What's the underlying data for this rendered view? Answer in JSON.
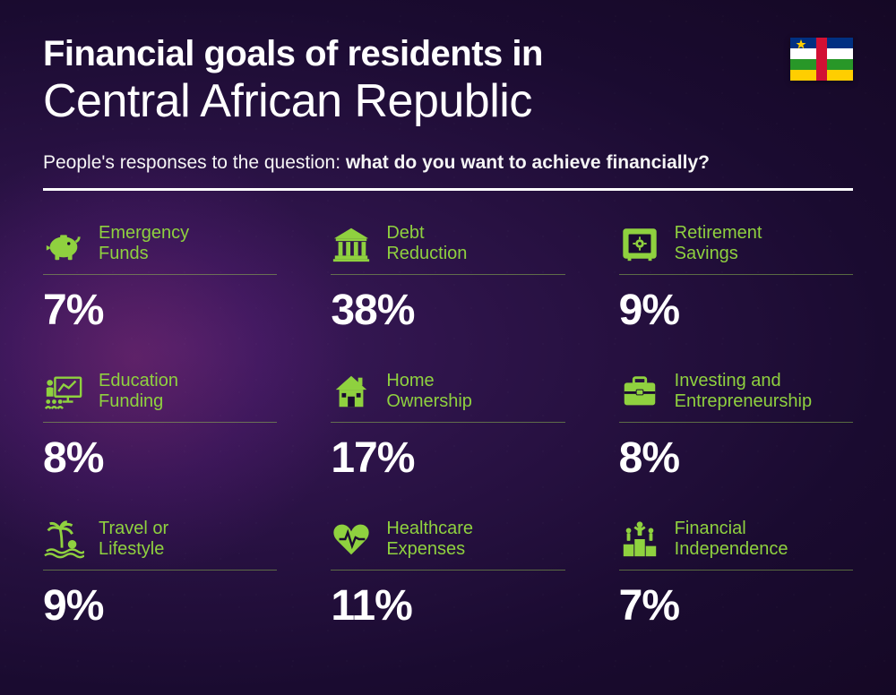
{
  "title": {
    "line1": "Financial goals of residents in",
    "line2": "Central African Republic"
  },
  "subtitle": {
    "prefix": "People's responses to the question: ",
    "bold": "what do you want to achieve financially?"
  },
  "colors": {
    "accent": "#8fd13f",
    "text": "#ffffff",
    "divider": "#ffffff",
    "cell_border": "rgba(150,200,80,0.5)",
    "background_gradient": [
      "#3d1a5c",
      "#2a1245",
      "#1a0b30",
      "#150825"
    ]
  },
  "typography": {
    "title_line1_size": 40,
    "title_line1_weight": 800,
    "title_line2_size": 52,
    "title_line2_weight": 300,
    "subtitle_size": 21,
    "label_size": 20,
    "value_size": 48,
    "value_weight": 800
  },
  "flag": {
    "country": "Central African Republic",
    "stripes": [
      "#003082",
      "#ffffff",
      "#289728",
      "#ffce00"
    ],
    "vertical_band": "#d21034",
    "star": "#ffce00"
  },
  "layout": {
    "type": "infographic",
    "grid_cols": 3,
    "grid_rows": 3,
    "column_gap": 60,
    "row_gap": 40
  },
  "items": [
    {
      "icon": "piggy-bank-icon",
      "label": "Emergency\nFunds",
      "value": "7%"
    },
    {
      "icon": "bank-icon",
      "label": "Debt\nReduction",
      "value": "38%"
    },
    {
      "icon": "safe-icon",
      "label": "Retirement\nSavings",
      "value": "9%"
    },
    {
      "icon": "presentation-icon",
      "label": "Education\nFunding",
      "value": "8%"
    },
    {
      "icon": "house-icon",
      "label": "Home\nOwnership",
      "value": "17%"
    },
    {
      "icon": "briefcase-icon",
      "label": "Investing and\nEntrepreneurship",
      "value": "8%"
    },
    {
      "icon": "palm-icon",
      "label": "Travel or\nLifestyle",
      "value": "9%"
    },
    {
      "icon": "heartbeat-icon",
      "label": "Healthcare\nExpenses",
      "value": "11%"
    },
    {
      "icon": "podium-icon",
      "label": "Financial\nIndependence",
      "value": "7%"
    }
  ]
}
